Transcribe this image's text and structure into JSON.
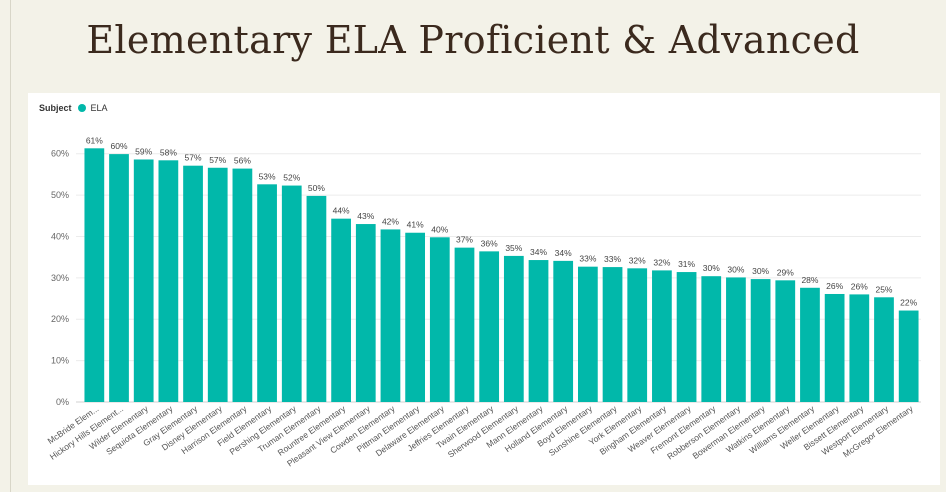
{
  "page": {
    "title": "Elementary ELA Proficient & Advanced"
  },
  "legend": {
    "title": "Subject",
    "series_name": "ELA",
    "color": "#01b8aa"
  },
  "chart_data": {
    "type": "bar",
    "title": "Elementary ELA Proficient & Advanced",
    "xlabel": "",
    "ylabel": "",
    "ylim": [
      0,
      65
    ],
    "y_ticks": [
      "0%",
      "10%",
      "20%",
      "30%",
      "40%",
      "50%",
      "60%"
    ],
    "y_tick_values": [
      0,
      10,
      20,
      30,
      40,
      50,
      60
    ],
    "grid": true,
    "legend_position": "top-left",
    "bar_color": "#01b8aa",
    "categories": [
      "McBride Elem...",
      "Hickory Hills Element...",
      "Wilder Elementary",
      "Sequiota Elementary",
      "Gray Elementary",
      "Disney Elementary",
      "Harrison Elementary",
      "Field Elementary",
      "Pershing Elementary",
      "Truman Elementary",
      "Rountree Elementary",
      "Pleasant View Elementary",
      "Cowden Elementary",
      "Pittman Elementary",
      "Delaware Elementary",
      "Jeffries Elementary",
      "Twain Elementary",
      "Sherwood Elementary",
      "Mann Elementary",
      "Holland Elementary",
      "Boyd Elementary",
      "Sunshine Elementary",
      "York Elementary",
      "Bingham Elementary",
      "Weaver Elementary",
      "Fremont Elementary",
      "Robberson Elementary",
      "Bowerman Elementary",
      "Watkins Elementary",
      "Williams Elementary",
      "Weller Elementary",
      "Bissett Elementary",
      "Westport Elementary",
      "McGregor Elementary"
    ],
    "series": [
      {
        "name": "ELA",
        "values": [
          61.3,
          59.9,
          58.6,
          58.4,
          57.1,
          56.6,
          56.4,
          52.6,
          52.3,
          49.8,
          44.3,
          43.0,
          41.7,
          40.9,
          39.8,
          37.3,
          36.4,
          35.3,
          34.3,
          34.1,
          32.7,
          32.6,
          32.3,
          31.8,
          31.4,
          30.4,
          30.1,
          29.7,
          29.4,
          27.6,
          26.1,
          26.0,
          25.3,
          22.1
        ],
        "labels": [
          "61%",
          "60%",
          "59%",
          "58%",
          "57%",
          "57%",
          "56%",
          "53%",
          "52%",
          "50%",
          "44%",
          "43%",
          "42%",
          "41%",
          "40%",
          "37%",
          "36%",
          "35%",
          "34%",
          "34%",
          "33%",
          "33%",
          "32%",
          "32%",
          "31%",
          "30%",
          "30%",
          "30%",
          "29%",
          "28%",
          "26%",
          "26%",
          "25%",
          "22%"
        ]
      }
    ]
  }
}
